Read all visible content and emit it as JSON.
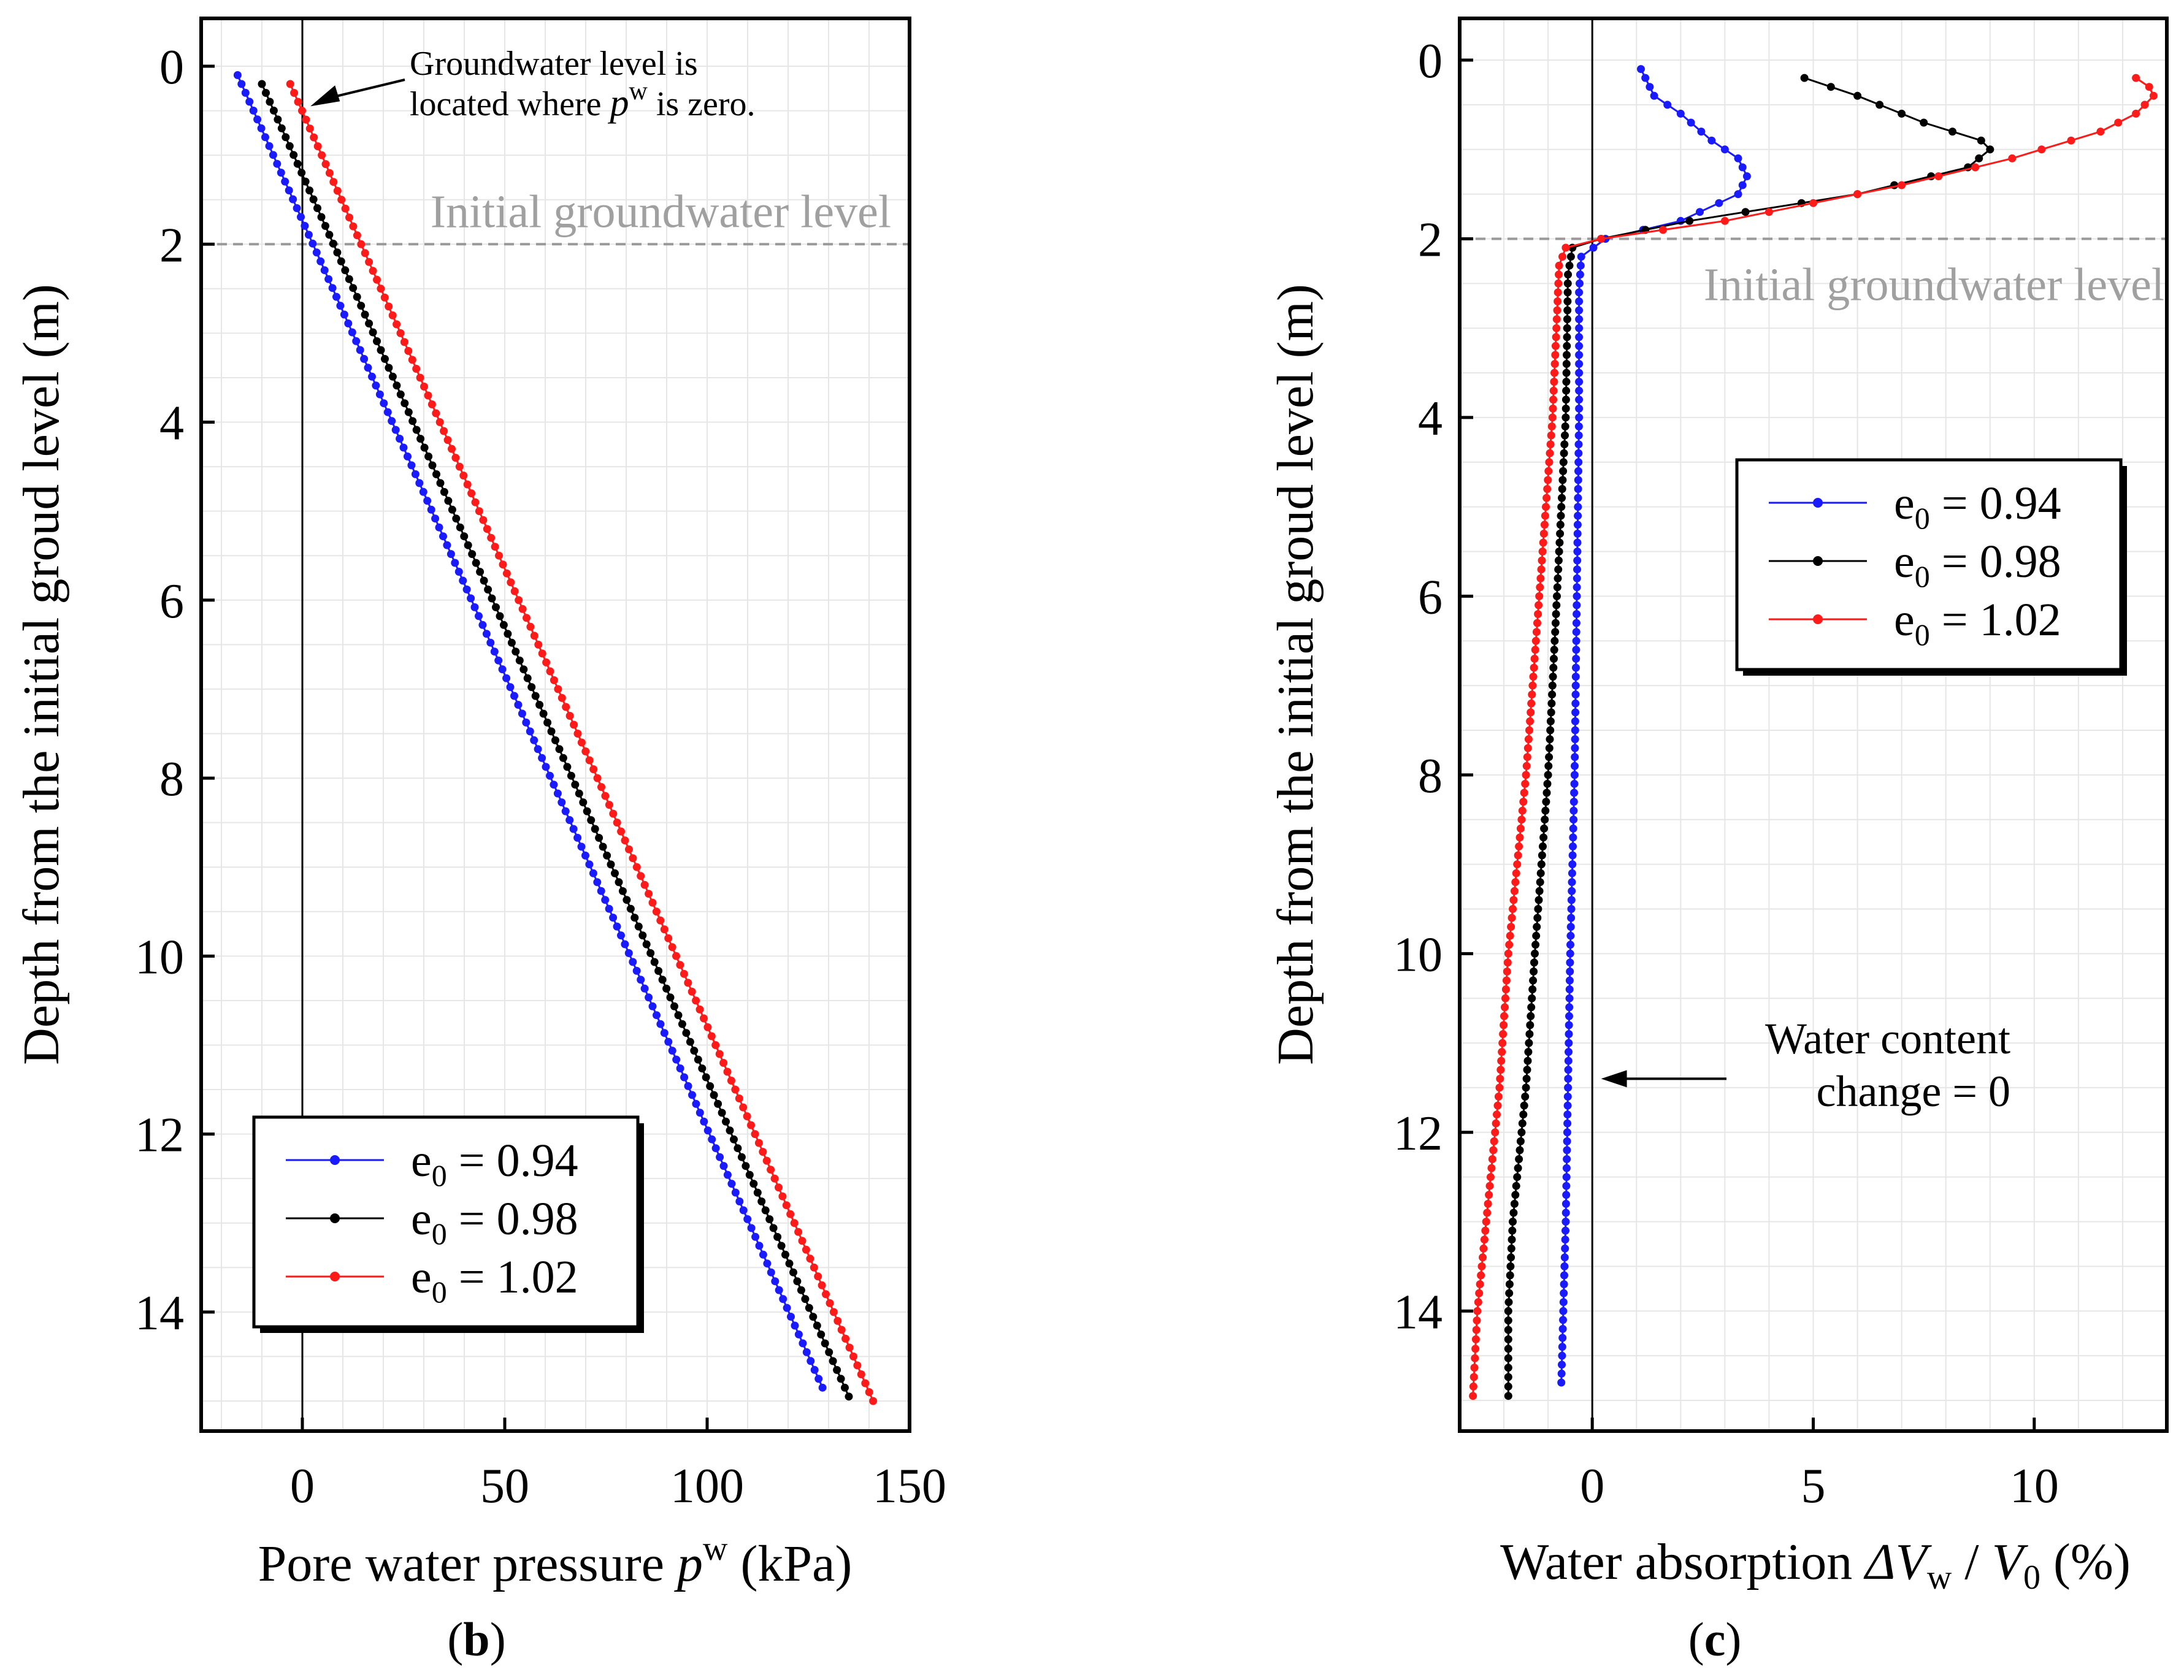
{
  "chart_data": [
    {
      "type": "line",
      "panel_label": "b",
      "xlabel": "Pore water pressure",
      "xlabel_symbol": "p",
      "xlabel_superscript": "w",
      "xlabel_unit": "(kPa)",
      "ylabel": "Depth from the initial groud level (m)",
      "xlim": [
        -25,
        150
      ],
      "ylim": [
        0,
        15
      ],
      "y_inverted": true,
      "xticks": [
        "0",
        "50",
        "100",
        "150"
      ],
      "yticks": [
        "0",
        "2",
        "4",
        "6",
        "8",
        "10",
        "12",
        "14"
      ],
      "grid": true,
      "reference_lines": [
        {
          "type": "horizontal_dashed",
          "y": 2,
          "label": "Initial groundwater level"
        },
        {
          "type": "vertical",
          "x": 0
        }
      ],
      "annotation": {
        "line1": "Groundwater level is",
        "line2_prefix": "located where",
        "symbol": "p",
        "superscript": "w",
        "line2_suffix": "is zero.",
        "points_to": {
          "x": 2,
          "y": 0.45
        }
      },
      "legend_position": "bottom-left",
      "series": [
        {
          "name": "e0 = 0.94",
          "legend_base": "e",
          "legend_sub": "0",
          "legend_rest": "= 0.94",
          "color": "#1a1aff",
          "x_top": -16,
          "y_top": 0.1,
          "x_bottom": 128.5,
          "y_bottom": 14.85
        },
        {
          "name": "e0 = 0.98",
          "legend_base": "e",
          "legend_sub": "0",
          "legend_rest": "= 0.98",
          "color": "#000000",
          "x_top": -10,
          "y_top": 0.2,
          "x_bottom": 135,
          "y_bottom": 14.95
        },
        {
          "name": "e0 = 1.02",
          "legend_base": "e",
          "legend_sub": "0",
          "legend_rest": "= 1.02",
          "color": "#ff1a1a",
          "x_top": -3,
          "y_top": 0.2,
          "x_bottom": 141,
          "y_bottom": 15.0
        }
      ]
    },
    {
      "type": "line",
      "panel_label": "c",
      "xlabel": "Water absorption",
      "xlabel_symbol1": "ΔV",
      "xlabel_sub1": "w",
      "xlabel_slash": " / ",
      "xlabel_symbol2": "V",
      "xlabel_sub2": "0",
      "xlabel_unit": "(%)",
      "ylabel": "Depth from the initial groud level (m)",
      "xlim": [
        -3,
        13
      ],
      "ylim": [
        0,
        15
      ],
      "y_inverted": true,
      "xticks": [
        "0",
        "5",
        "10"
      ],
      "yticks": [
        "0",
        "2",
        "4",
        "6",
        "8",
        "10",
        "12",
        "14"
      ],
      "grid": true,
      "reference_lines": [
        {
          "type": "horizontal_dashed",
          "y": 2,
          "label": "Initial groundwater level"
        },
        {
          "type": "vertical",
          "x": 0
        }
      ],
      "annotation": {
        "line1": "Water content",
        "line2": "change = 0",
        "points_to": {
          "x": 0.2,
          "y": 11.4
        }
      },
      "legend_position": "upper-right",
      "series": [
        {
          "name": "e0 = 0.94",
          "legend_base": "e",
          "legend_sub": "0",
          "legend_rest": "= 0.94",
          "color": "#1a1aff",
          "points": [
            [
              1.1,
              0.1
            ],
            [
              1.4,
              0.4
            ],
            [
              2.0,
              0.6
            ],
            [
              2.7,
              0.9
            ],
            [
              3.3,
              1.1
            ],
            [
              3.5,
              1.3
            ],
            [
              3.3,
              1.5
            ],
            [
              2.0,
              1.8
            ],
            [
              0.3,
              2.0
            ],
            [
              -0.25,
              2.2
            ],
            [
              -0.3,
              2.6
            ],
            [
              -0.3,
              4
            ],
            [
              -0.35,
              6
            ],
            [
              -0.4,
              8
            ],
            [
              -0.5,
              10
            ],
            [
              -0.55,
              11.5
            ],
            [
              -0.6,
              13
            ],
            [
              -0.7,
              14.8
            ]
          ]
        },
        {
          "name": "e0 = 0.98",
          "legend_base": "e",
          "legend_sub": "0",
          "legend_rest": "= 0.98",
          "color": "#000000",
          "points": [
            [
              4.8,
              0.2
            ],
            [
              6.0,
              0.4
            ],
            [
              7.5,
              0.7
            ],
            [
              8.8,
              0.9
            ],
            [
              9.0,
              1.0
            ],
            [
              8.5,
              1.2
            ],
            [
              6.0,
              1.5
            ],
            [
              2.2,
              1.8
            ],
            [
              0.2,
              2.0
            ],
            [
              -0.45,
              2.1
            ],
            [
              -0.55,
              2.4
            ],
            [
              -0.6,
              4
            ],
            [
              -0.8,
              6
            ],
            [
              -1.0,
              8
            ],
            [
              -1.3,
              10
            ],
            [
              -1.5,
              11.5
            ],
            [
              -1.8,
              13
            ],
            [
              -1.9,
              14
            ],
            [
              -1.9,
              14.95
            ]
          ]
        },
        {
          "name": "e0 = 1.02",
          "legend_base": "e",
          "legend_sub": "0",
          "legend_rest": "= 1.02",
          "color": "#ff1a1a",
          "points": [
            [
              12.3,
              0.2
            ],
            [
              12.6,
              0.3
            ],
            [
              12.7,
              0.4
            ],
            [
              12.3,
              0.6
            ],
            [
              11.5,
              0.8
            ],
            [
              9.5,
              1.1
            ],
            [
              7.0,
              1.4
            ],
            [
              3.0,
              1.8
            ],
            [
              0.2,
              2.0
            ],
            [
              -0.6,
              2.1
            ],
            [
              -0.75,
              2.3
            ],
            [
              -0.9,
              4
            ],
            [
              -1.2,
              6
            ],
            [
              -1.5,
              8
            ],
            [
              -1.9,
              10
            ],
            [
              -2.1,
              11.5
            ],
            [
              -2.4,
              13
            ],
            [
              -2.6,
              14
            ],
            [
              -2.7,
              14.95
            ]
          ]
        }
      ]
    }
  ]
}
